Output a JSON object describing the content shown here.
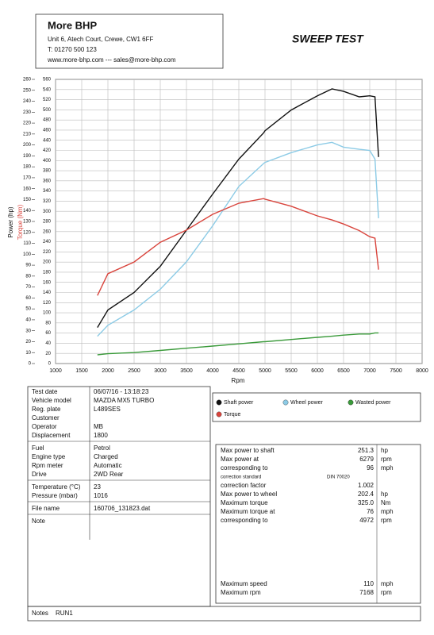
{
  "header": {
    "company": "More BHP",
    "address": "Unit 6, Atech Court, Crewe, CW1 6FF",
    "phone": "T: 01270 500 123",
    "web": "www.more-bhp.com --- sales@more-bhp.com",
    "title": "SWEEP TEST"
  },
  "chart_data": {
    "type": "line",
    "x_label": "Rpm",
    "y_label": "Power (hp)",
    "y2_label": "Torque (Nm)",
    "x": [
      1800,
      2000,
      2500,
      3000,
      3500,
      4000,
      4500,
      4972,
      5000,
      5500,
      6000,
      6279,
      6500,
      6800,
      7000,
      7100,
      7168
    ],
    "series": [
      {
        "name": "Shaft power",
        "color": "#111111",
        "values": [
          33,
          49,
          65,
          89,
          122,
          155,
          187,
          211,
          213,
          232,
          245,
          251.3,
          249,
          244,
          245,
          244,
          189
        ]
      },
      {
        "name": "Wheel power",
        "color": "#8ccbe6",
        "values": [
          25,
          35,
          49,
          68,
          93,
          126,
          162,
          183,
          184,
          193,
          200,
          202.4,
          198,
          196,
          195,
          187,
          133
        ]
      },
      {
        "name": "Wasted power",
        "color": "#3a9a3a",
        "values": [
          8,
          9,
          10,
          12,
          14,
          16,
          18,
          20,
          20,
          22,
          24,
          25,
          26,
          27,
          27,
          28,
          28
        ]
      },
      {
        "name": "Torque",
        "color": "#d9443c",
        "axis": "y2",
        "values": [
          134,
          177,
          200,
          239,
          263,
          294,
          316,
          325,
          324,
          310,
          291,
          283,
          275,
          262,
          250,
          247,
          185
        ]
      }
    ],
    "xlim": [
      1000,
      8000
    ],
    "xticks": [
      1000,
      1500,
      2000,
      2500,
      3000,
      3500,
      4000,
      4500,
      5000,
      5500,
      6000,
      6500,
      7000,
      7500,
      8000
    ],
    "ylim": [
      0,
      260
    ],
    "yticks": [
      0,
      10,
      20,
      30,
      40,
      50,
      60,
      70,
      80,
      90,
      100,
      110,
      120,
      130,
      140,
      150,
      160,
      170,
      180,
      190,
      200,
      210,
      220,
      230,
      240,
      250,
      260
    ],
    "y2lim": [
      0,
      560
    ],
    "y2ticks": [
      0,
      20,
      40,
      60,
      80,
      100,
      120,
      140,
      160,
      180,
      200,
      220,
      240,
      260,
      280,
      300,
      320,
      340,
      360,
      380,
      400,
      420,
      440,
      460,
      480,
      500,
      520,
      540,
      560
    ],
    "grid": true
  },
  "info": {
    "groups": [
      [
        {
          "label": "Test date",
          "value": "06/07/16 - 13:18:23"
        },
        {
          "label": "Vehicle model",
          "value": "MAZDA MX5 TURBO"
        },
        {
          "label": "Reg. plate",
          "value": "L489SES"
        },
        {
          "label": "Customer"
        },
        {
          "label": "Operator",
          "value": "MB"
        },
        {
          "label": "Displacement",
          "value": "1800"
        }
      ],
      [
        {
          "label": "Fuel",
          "value": "Petrol"
        },
        {
          "label": "Engine type",
          "value": "Charged"
        },
        {
          "label": "Rpm meter",
          "value": "Automatic"
        },
        {
          "label": "Drive",
          "value": "2WD Rear"
        }
      ],
      [
        {
          "label": "Temperature (°C)",
          "value": "23"
        },
        {
          "label": "Pressure (mbar)",
          "value": "1016"
        }
      ],
      [
        {
          "label": "File name",
          "value": "160706_131823.dat"
        }
      ],
      [
        {
          "label": "Note"
        }
      ]
    ]
  },
  "results": {
    "rows": [
      {
        "label": "Max power to shaft",
        "value": "251.3",
        "unit": "hp"
      },
      {
        "label": "Max power at",
        "value": "6279",
        "unit": "rpm"
      },
      {
        "label": "corresponding to",
        "value": "96",
        "unit": "mph"
      },
      {
        "label": "correction standard",
        "value": "DIN 70020"
      },
      {
        "label": "correction factor",
        "value": "1.002"
      },
      {
        "label": "Max power to wheel",
        "value": "202.4",
        "unit": "hp"
      },
      {
        "label": "Maximum torque",
        "value": "325.0",
        "unit": "Nm"
      },
      {
        "label": "Maximum torque at",
        "value": "76",
        "unit": "mph"
      },
      {
        "label": "corresponding to",
        "value": "4972",
        "unit": "rpm"
      }
    ],
    "limits": [
      {
        "label": "Maximum speed",
        "value": "110",
        "unit": "mph"
      },
      {
        "label": "Maximum rpm",
        "value": "7168",
        "unit": "rpm"
      }
    ]
  },
  "footer": {
    "notes_label": "Notes",
    "notes": "RUN1"
  }
}
